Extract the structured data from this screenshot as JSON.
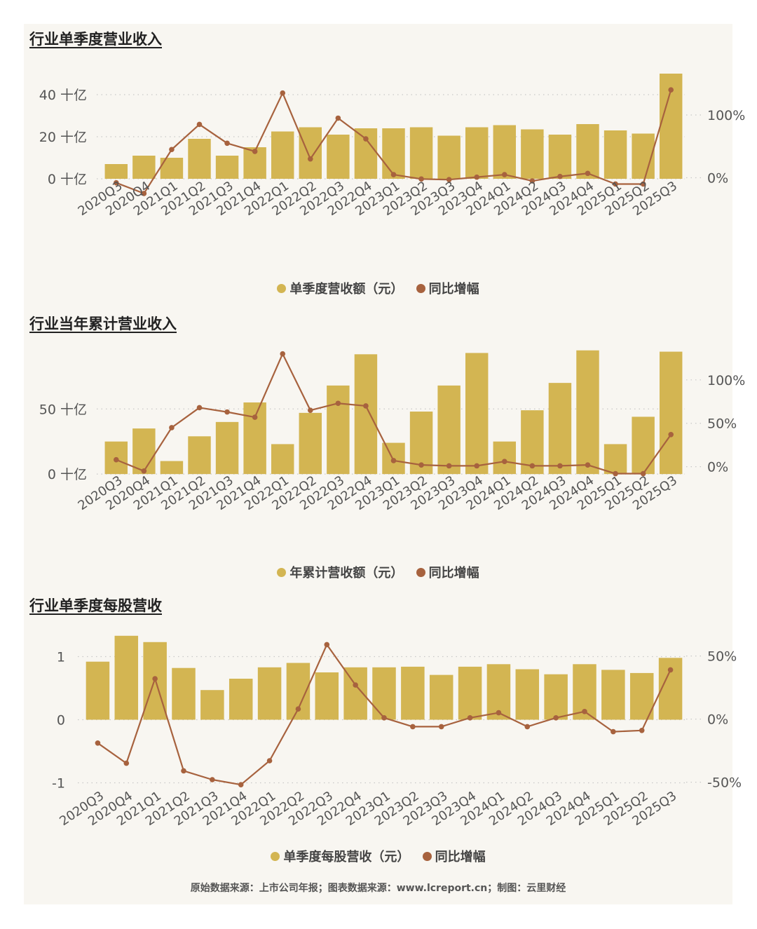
{
  "colors": {
    "bar": "#d3b552",
    "line": "#a7623e",
    "grid": "#c8c8c8",
    "text": "#555555"
  },
  "footer": "原始数据来源：上市公司年报；图表数据来源：www.lcreport.cn；制图：云里财经",
  "chart_data": [
    {
      "type": "bar",
      "title": "行业单季度营业收入",
      "categories": [
        "2020Q3",
        "2020Q4",
        "2021Q1",
        "2021Q2",
        "2021Q3",
        "2021Q4",
        "2022Q1",
        "2022Q2",
        "2022Q3",
        "2022Q4",
        "2023Q1",
        "2023Q2",
        "2023Q3",
        "2023Q4",
        "2024Q1",
        "2024Q2",
        "2024Q3",
        "2024Q4",
        "2025Q1",
        "2025Q2",
        "2025Q3"
      ],
      "series": [
        {
          "name": "单季度营收额（元）",
          "kind": "bar",
          "axis": "left",
          "values": [
            7,
            11,
            10,
            19,
            11,
            15,
            22.5,
            24.5,
            21,
            24,
            24,
            24.5,
            20.5,
            24.5,
            25.5,
            23.5,
            21,
            26,
            23,
            21.5,
            50
          ]
        },
        {
          "name": "同比增幅",
          "kind": "line",
          "axis": "right",
          "values": [
            -8,
            -25,
            45,
            85,
            55,
            42,
            135,
            30,
            95,
            62,
            5,
            -2,
            -3,
            1,
            5,
            -5,
            2,
            7,
            -10,
            -10,
            140
          ]
        }
      ],
      "ylim": [
        -1,
        53
      ],
      "yticks": [
        0,
        20,
        40
      ],
      "ytick_labels": [
        "0 十亿",
        "20 十亿",
        "40 十亿"
      ],
      "y2lim": [
        -5,
        176
      ],
      "y2ticks": [
        0,
        100
      ],
      "y2tick_labels": [
        "0%",
        "100%"
      ]
    },
    {
      "type": "bar",
      "title": "行业当年累计营业收入",
      "categories": [
        "2020Q3",
        "2020Q4",
        "2021Q1",
        "2021Q2",
        "2021Q3",
        "2021Q4",
        "2022Q1",
        "2022Q2",
        "2022Q3",
        "2022Q4",
        "2023Q1",
        "2023Q2",
        "2023Q3",
        "2023Q4",
        "2024Q1",
        "2024Q2",
        "2024Q3",
        "2024Q4",
        "2025Q1",
        "2025Q2",
        "2025Q3"
      ],
      "series": [
        {
          "name": "年累计营收额（元）",
          "kind": "bar",
          "axis": "left",
          "values": [
            25,
            35,
            10,
            29,
            40,
            55,
            23,
            47,
            68,
            92,
            24,
            48,
            68,
            93,
            25,
            49,
            70,
            95,
            23,
            44,
            94
          ]
        },
        {
          "name": "同比增幅",
          "kind": "line",
          "axis": "right",
          "values": [
            8,
            -5,
            45,
            68,
            63,
            57,
            130,
            65,
            73,
            70,
            7,
            2,
            1,
            1,
            6,
            1,
            1,
            2,
            -8,
            -8,
            37
          ]
        }
      ],
      "ylim": [
        -1,
        97
      ],
      "yticks": [
        0,
        50
      ],
      "ytick_labels": [
        "0 十亿",
        "50 十亿"
      ],
      "y2lim": [
        -10,
        137
      ],
      "y2ticks": [
        0,
        50,
        100
      ],
      "y2tick_labels": [
        "0%",
        "50%",
        "100%"
      ]
    },
    {
      "type": "bar",
      "title": "行业单季度每股营收",
      "categories": [
        "2020Q3",
        "2020Q4",
        "2021Q1",
        "2021Q2",
        "2021Q3",
        "2021Q4",
        "2022Q1",
        "2022Q2",
        "2022Q3",
        "2022Q4",
        "2023Q1",
        "2023Q2",
        "2023Q3",
        "2023Q4",
        "2024Q1",
        "2024Q2",
        "2024Q3",
        "2024Q4",
        "2025Q1",
        "2025Q2",
        "2025Q3"
      ],
      "series": [
        {
          "name": "单季度每股营收（元）",
          "kind": "bar",
          "axis": "left",
          "values": [
            0.92,
            1.33,
            1.23,
            0.82,
            0.47,
            0.65,
            0.83,
            0.9,
            0.75,
            0.83,
            0.83,
            0.84,
            0.71,
            0.84,
            0.88,
            0.8,
            0.72,
            0.88,
            0.79,
            0.74,
            0.98
          ]
        },
        {
          "name": "同比增幅",
          "kind": "line",
          "axis": "right",
          "values": [
            -19,
            -35,
            32,
            -41,
            -48,
            -52,
            -33,
            8,
            59,
            27,
            1,
            -6,
            -6,
            1,
            5,
            -6,
            1,
            6,
            -10,
            -9,
            39
          ]
        }
      ],
      "ylim": [
        -1.15,
        1.45
      ],
      "yticks": [
        -1,
        0,
        1
      ],
      "ytick_labels": [
        "-1",
        "0",
        "1"
      ],
      "y2lim": [
        -58,
        72
      ],
      "y2ticks": [
        -50,
        0,
        50
      ],
      "y2tick_labels": [
        "-50%",
        "0%",
        "50%"
      ]
    }
  ]
}
